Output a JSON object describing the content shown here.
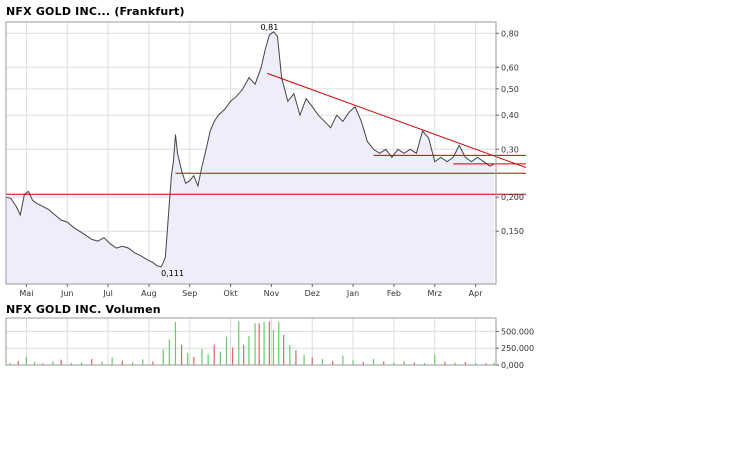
{
  "price_chart": {
    "title": "NFX GOLD INC... (Frankfurt)"
  },
  "volume_chart": {
    "title": "NFX GOLD INC. Volumen"
  },
  "colors": {
    "price_line": "#444444",
    "price_fill": "#eeeefa",
    "trendline": "#cc0000",
    "grid": "#dddddd",
    "volume_up": "#66cc66",
    "volume_down": "#dd6666"
  },
  "chart_data": [
    {
      "type": "area",
      "title": "NFX GOLD INC... (Frankfurt)",
      "y_scale": "log",
      "ylim": [
        0.096,
        0.88
      ],
      "y_ticks": [
        "0,80",
        "0,60",
        "0,50",
        "0,40",
        "0,30",
        "0,200",
        "0,150"
      ],
      "y_tick_values": [
        0.8,
        0.6,
        0.5,
        0.4,
        0.3,
        0.2,
        0.15
      ],
      "x_ticks": [
        "Mai",
        "Jun",
        "Jul",
        "Aug",
        "Sep",
        "Okt",
        "Nov",
        "Dez",
        "Jan",
        "Feb",
        "Mrz",
        "Apr"
      ],
      "x_tick_positions": [
        0.5,
        1.5,
        2.5,
        3.5,
        4.5,
        5.5,
        6.5,
        7.5,
        8.5,
        9.5,
        10.5,
        11.5
      ],
      "x_range": [
        0,
        12
      ],
      "grid": true,
      "annotations": [
        {
          "text": "0,81",
          "x": 6.45,
          "y": 0.81
        },
        {
          "text": "0,111",
          "x": 3.8,
          "y": 0.111
        }
      ],
      "series": [
        {
          "x": [
            0.0,
            0.12,
            0.25,
            0.35,
            0.45,
            0.55,
            0.65,
            0.75,
            0.9,
            1.05,
            1.2,
            1.35,
            1.5,
            1.65,
            1.8,
            1.95,
            2.1,
            2.25,
            2.4,
            2.55,
            2.7,
            2.85,
            3.0,
            3.15,
            3.3,
            3.45,
            3.6,
            3.7,
            3.8,
            3.85,
            3.9,
            3.95,
            4.0,
            4.05,
            4.1,
            4.15,
            4.2,
            4.25,
            4.3,
            4.4,
            4.5,
            4.6,
            4.7,
            4.8,
            4.9,
            5.0,
            5.1,
            5.2,
            5.35,
            5.5,
            5.65,
            5.8,
            5.95,
            6.1,
            6.25,
            6.35,
            6.45,
            6.55,
            6.65,
            6.75,
            6.9,
            7.05,
            7.2,
            7.35,
            7.5,
            7.65,
            7.8,
            7.95,
            8.1,
            8.25,
            8.4,
            8.55,
            8.7,
            8.85,
            9.0,
            9.15,
            9.3,
            9.45,
            9.6,
            9.75,
            9.9,
            10.05,
            10.2,
            10.35,
            10.5,
            10.65,
            10.8,
            10.95,
            11.1,
            11.25,
            11.4,
            11.55,
            11.7,
            11.85,
            11.95
          ],
          "values": [
            0.2,
            0.198,
            0.185,
            0.172,
            0.205,
            0.21,
            0.195,
            0.19,
            0.185,
            0.18,
            0.172,
            0.165,
            0.162,
            0.155,
            0.15,
            0.145,
            0.14,
            0.138,
            0.142,
            0.135,
            0.13,
            0.132,
            0.13,
            0.125,
            0.122,
            0.118,
            0.115,
            0.112,
            0.111,
            0.115,
            0.12,
            0.15,
            0.19,
            0.24,
            0.27,
            0.34,
            0.29,
            0.27,
            0.25,
            0.225,
            0.23,
            0.24,
            0.22,
            0.26,
            0.3,
            0.35,
            0.38,
            0.4,
            0.42,
            0.45,
            0.47,
            0.5,
            0.55,
            0.52,
            0.6,
            0.7,
            0.79,
            0.81,
            0.78,
            0.55,
            0.45,
            0.48,
            0.4,
            0.46,
            0.43,
            0.4,
            0.38,
            0.36,
            0.4,
            0.38,
            0.41,
            0.43,
            0.38,
            0.32,
            0.3,
            0.29,
            0.3,
            0.28,
            0.3,
            0.29,
            0.3,
            0.29,
            0.35,
            0.33,
            0.27,
            0.28,
            0.27,
            0.28,
            0.31,
            0.28,
            0.27,
            0.28,
            0.27,
            0.26,
            0.265
          ]
        }
      ],
      "trendlines": [
        {
          "x": [
            6.4,
            12.0
          ],
          "y": [
            0.57,
            0.275
          ]
        },
        {
          "x": [
            9.0,
            12.0
          ],
          "y": [
            0.285,
            0.285
          ]
        },
        {
          "x": [
            10.95,
            12.0
          ],
          "y": [
            0.265,
            0.265
          ]
        },
        {
          "x": [
            4.15,
            12.0
          ],
          "y": [
            0.245,
            0.245
          ]
        },
        {
          "x": [
            0.0,
            12.0
          ],
          "y": [
            0.205,
            0.205
          ]
        }
      ]
    },
    {
      "type": "bar",
      "title": "NFX GOLD INC. Volumen",
      "ylim": [
        0,
        700000
      ],
      "y_ticks": [
        "500.000",
        "250.000",
        "0,000"
      ],
      "y_tick_values": [
        500000,
        250000,
        0
      ],
      "x_range": [
        0,
        12
      ],
      "grid": true,
      "bars": [
        {
          "x": 0.1,
          "v": 35000,
          "up": true
        },
        {
          "x": 0.3,
          "v": 60000,
          "up": false
        },
        {
          "x": 0.5,
          "v": 120000,
          "up": true
        },
        {
          "x": 0.7,
          "v": 45000,
          "up": true
        },
        {
          "x": 0.9,
          "v": 25000,
          "up": false
        },
        {
          "x": 1.15,
          "v": 55000,
          "up": true
        },
        {
          "x": 1.35,
          "v": 80000,
          "up": false
        },
        {
          "x": 1.6,
          "v": 30000,
          "up": true
        },
        {
          "x": 1.85,
          "v": 40000,
          "up": true
        },
        {
          "x": 2.1,
          "v": 90000,
          "up": false
        },
        {
          "x": 2.35,
          "v": 50000,
          "up": true
        },
        {
          "x": 2.6,
          "v": 110000,
          "up": true
        },
        {
          "x": 2.85,
          "v": 65000,
          "up": false
        },
        {
          "x": 3.1,
          "v": 40000,
          "up": true
        },
        {
          "x": 3.35,
          "v": 85000,
          "up": true
        },
        {
          "x": 3.6,
          "v": 55000,
          "up": false
        },
        {
          "x": 3.85,
          "v": 230000,
          "up": true
        },
        {
          "x": 4.0,
          "v": 380000,
          "up": true
        },
        {
          "x": 4.15,
          "v": 640000,
          "up": true
        },
        {
          "x": 4.3,
          "v": 300000,
          "up": false
        },
        {
          "x": 4.45,
          "v": 180000,
          "up": true
        },
        {
          "x": 4.6,
          "v": 120000,
          "up": false
        },
        {
          "x": 4.8,
          "v": 240000,
          "up": true
        },
        {
          "x": 4.95,
          "v": 160000,
          "up": true
        },
        {
          "x": 5.1,
          "v": 300000,
          "up": false
        },
        {
          "x": 5.25,
          "v": 200000,
          "up": true
        },
        {
          "x": 5.4,
          "v": 420000,
          "up": true
        },
        {
          "x": 5.55,
          "v": 260000,
          "up": false
        },
        {
          "x": 5.7,
          "v": 650000,
          "up": true
        },
        {
          "x": 5.82,
          "v": 300000,
          "up": false
        },
        {
          "x": 5.95,
          "v": 430000,
          "up": true
        },
        {
          "x": 6.1,
          "v": 620000,
          "up": true
        },
        {
          "x": 6.2,
          "v": 620000,
          "up": false
        },
        {
          "x": 6.32,
          "v": 640000,
          "up": true
        },
        {
          "x": 6.45,
          "v": 650000,
          "up": false
        },
        {
          "x": 6.55,
          "v": 520000,
          "up": true
        },
        {
          "x": 6.68,
          "v": 640000,
          "up": true
        },
        {
          "x": 6.8,
          "v": 450000,
          "up": false
        },
        {
          "x": 6.95,
          "v": 300000,
          "up": true
        },
        {
          "x": 7.1,
          "v": 220000,
          "up": false
        },
        {
          "x": 7.3,
          "v": 150000,
          "up": true
        },
        {
          "x": 7.5,
          "v": 110000,
          "up": false
        },
        {
          "x": 7.75,
          "v": 90000,
          "up": true
        },
        {
          "x": 8.0,
          "v": 60000,
          "up": false
        },
        {
          "x": 8.25,
          "v": 140000,
          "up": true
        },
        {
          "x": 8.5,
          "v": 70000,
          "up": true
        },
        {
          "x": 8.75,
          "v": 45000,
          "up": false
        },
        {
          "x": 9.0,
          "v": 90000,
          "up": true
        },
        {
          "x": 9.25,
          "v": 55000,
          "up": false
        },
        {
          "x": 9.5,
          "v": 35000,
          "up": true
        },
        {
          "x": 9.75,
          "v": 60000,
          "up": true
        },
        {
          "x": 10.0,
          "v": 40000,
          "up": false
        },
        {
          "x": 10.25,
          "v": 30000,
          "up": true
        },
        {
          "x": 10.5,
          "v": 160000,
          "up": true
        },
        {
          "x": 10.75,
          "v": 50000,
          "up": false
        },
        {
          "x": 11.0,
          "v": 35000,
          "up": true
        },
        {
          "x": 11.25,
          "v": 45000,
          "up": false
        },
        {
          "x": 11.5,
          "v": 30000,
          "up": true
        },
        {
          "x": 11.75,
          "v": 25000,
          "up": false
        },
        {
          "x": 11.95,
          "v": 35000,
          "up": true
        }
      ]
    }
  ]
}
